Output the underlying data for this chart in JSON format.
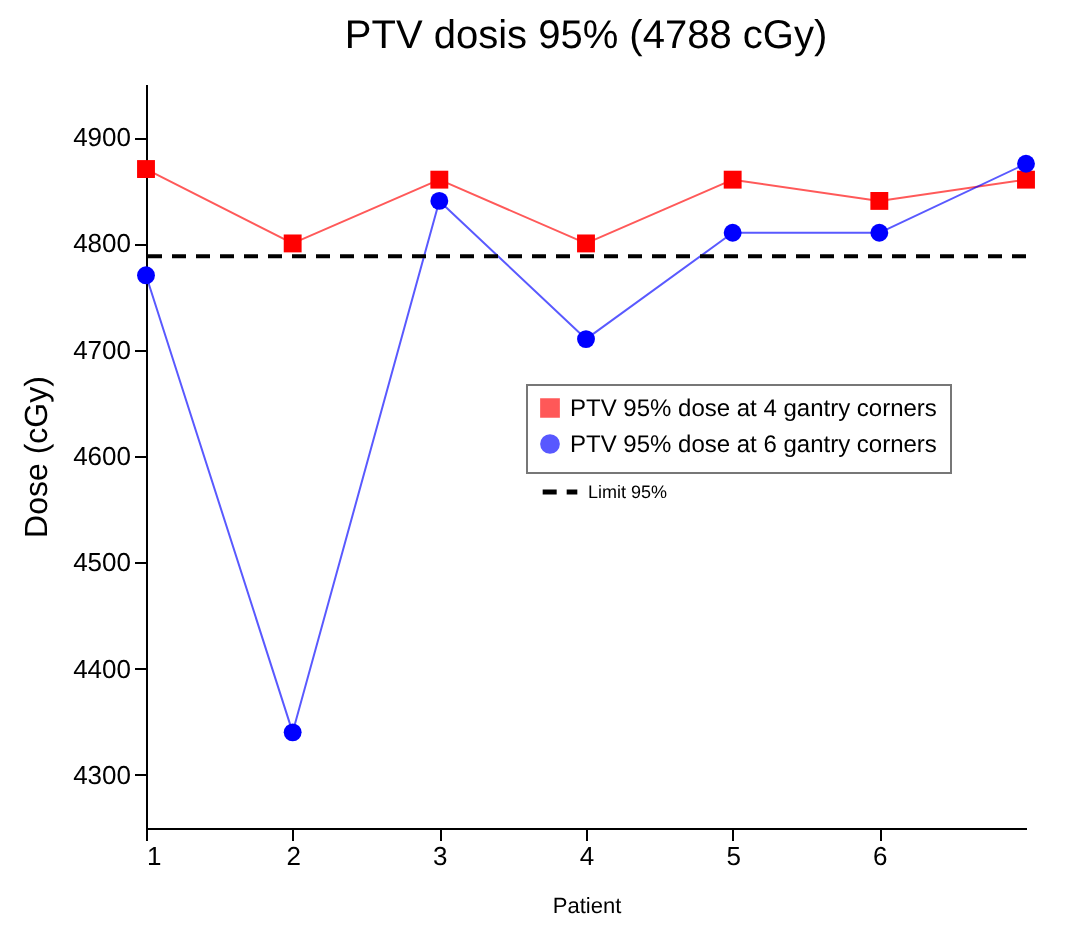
{
  "chart_data": {
    "type": "line",
    "title": "PTV dosis 95% (4788 cGy)",
    "xlabel": "Patient",
    "ylabel": "Dose (cGy)",
    "x": [
      1,
      2,
      3,
      4,
      5,
      6,
      7
    ],
    "series": [
      {
        "name": "PTV 95% dose at 4 gantry corners",
        "color": "#ff0000",
        "marker": "square",
        "values": [
          4870,
          4800,
          4860,
          4800,
          4860,
          4840,
          4860
        ]
      },
      {
        "name": "PTV 95% dose at 6 gantry corners",
        "color": "#0000ff",
        "marker": "circle",
        "values": [
          4770,
          4340,
          4840,
          4710,
          4810,
          4810,
          4875
        ]
      }
    ],
    "ref_lines": [
      {
        "axis": "y",
        "value": 4788,
        "label": "Limit 95%",
        "color": "#000000",
        "line_style": "dashed"
      }
    ],
    "xlim": [
      1,
      7
    ],
    "xticks": [
      1,
      2,
      3,
      4,
      5,
      6
    ],
    "ylim": [
      4250,
      4950
    ],
    "yticks": [
      4300,
      4400,
      4500,
      4600,
      4700,
      4800,
      4900
    ],
    "grid": false,
    "legend": "right"
  }
}
